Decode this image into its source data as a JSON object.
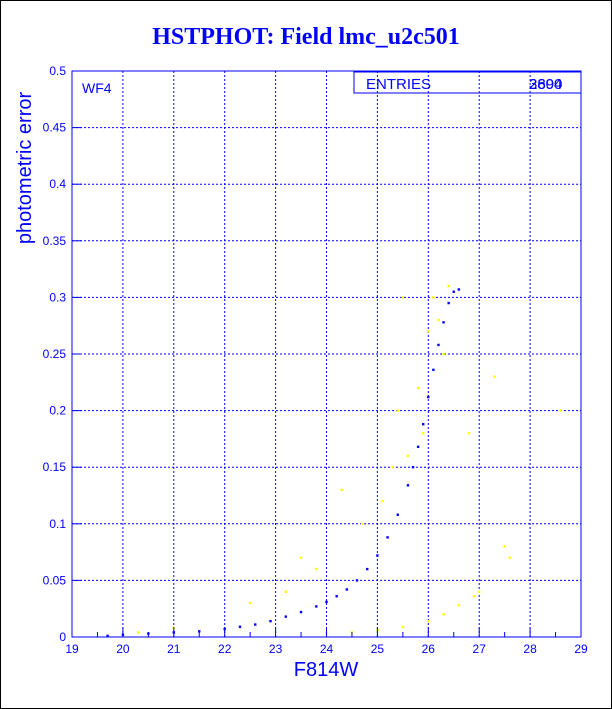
{
  "title": "HSTPHOT: Field lmc_u2c501",
  "chart_data": {
    "type": "scatter",
    "title": "HSTPHOT: Field lmc_u2c501",
    "xlabel": "F814W",
    "ylabel": "photometric error",
    "xlim": [
      19,
      29
    ],
    "ylim": [
      0,
      0.5
    ],
    "x_ticks": [
      "19",
      "20",
      "21",
      "22",
      "23",
      "24",
      "25",
      "26",
      "27",
      "28",
      "29"
    ],
    "y_ticks": [
      "0",
      "0.05",
      "0.1",
      "0.15",
      "0.2",
      "0.25",
      "0.3",
      "0.35",
      "0.4",
      "0.45",
      "0.5"
    ],
    "grid": true,
    "panel_label": "WF4",
    "stats_box": {
      "label": "ENTRIES",
      "values": [
        "2890",
        "3604"
      ]
    },
    "colors": {
      "primary": "#0000ff",
      "secondary": "#ffff00"
    },
    "series": [
      {
        "color": "#0000ff",
        "points": [
          [
            19.7,
            0.001
          ],
          [
            20.0,
            0.002
          ],
          [
            20.5,
            0.003
          ],
          [
            21.0,
            0.004
          ],
          [
            21.5,
            0.005
          ],
          [
            22.0,
            0.007
          ],
          [
            22.3,
            0.009
          ],
          [
            22.6,
            0.011
          ],
          [
            22.9,
            0.014
          ],
          [
            23.2,
            0.018
          ],
          [
            23.5,
            0.022
          ],
          [
            23.8,
            0.027
          ],
          [
            24.0,
            0.031
          ],
          [
            24.2,
            0.036
          ],
          [
            24.4,
            0.042
          ],
          [
            24.6,
            0.05
          ],
          [
            24.8,
            0.06
          ],
          [
            25.0,
            0.072
          ],
          [
            25.2,
            0.088
          ],
          [
            25.4,
            0.108
          ],
          [
            25.6,
            0.134
          ],
          [
            25.7,
            0.15
          ],
          [
            25.8,
            0.168
          ],
          [
            25.9,
            0.188
          ],
          [
            26.0,
            0.212
          ],
          [
            26.1,
            0.236
          ],
          [
            26.2,
            0.258
          ],
          [
            26.3,
            0.278
          ],
          [
            26.4,
            0.295
          ],
          [
            26.5,
            0.305
          ],
          [
            26.6,
            0.307
          ]
        ]
      },
      {
        "color": "#ffff00",
        "points": [
          [
            24.0,
            0.003
          ],
          [
            24.5,
            0.004
          ],
          [
            25.0,
            0.006
          ],
          [
            25.5,
            0.009
          ],
          [
            26.0,
            0.014
          ],
          [
            26.3,
            0.02
          ],
          [
            26.6,
            0.028
          ],
          [
            26.9,
            0.036
          ],
          [
            27.0,
            0.04
          ],
          [
            27.5,
            0.08
          ],
          [
            27.6,
            0.07
          ],
          [
            27.3,
            0.23
          ],
          [
            28.6,
            0.2
          ],
          [
            24.3,
            0.13
          ],
          [
            23.8,
            0.06
          ],
          [
            23.2,
            0.04
          ],
          [
            22.5,
            0.03
          ],
          [
            25.4,
            0.2
          ],
          [
            25.3,
            0.15
          ],
          [
            26.1,
            0.3
          ],
          [
            26.2,
            0.28
          ],
          [
            26.3,
            0.25
          ],
          [
            25.8,
            0.22
          ],
          [
            25.9,
            0.18
          ],
          [
            25.6,
            0.16
          ],
          [
            26.0,
            0.27
          ],
          [
            26.4,
            0.31
          ],
          [
            25.5,
            0.3
          ],
          [
            23.5,
            0.07
          ],
          [
            24.7,
            0.1
          ],
          [
            25.1,
            0.12
          ],
          [
            26.8,
            0.18
          ],
          [
            20.3,
            0.004
          ],
          [
            21.0,
            0.008
          ]
        ]
      }
    ]
  }
}
